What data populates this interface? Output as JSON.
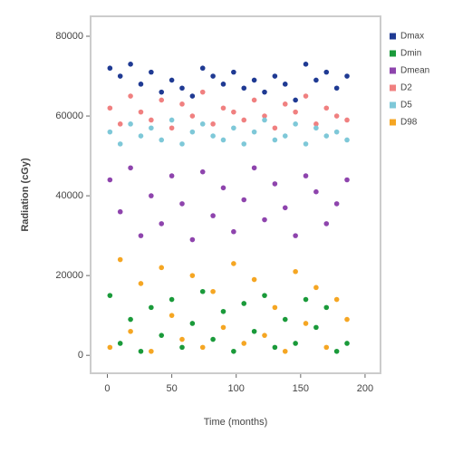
{
  "chart_data": {
    "type": "scatter",
    "xlabel": "Time (months)",
    "ylabel": "Radiation (cGy)",
    "x": [
      2,
      10,
      18,
      26,
      34,
      42,
      50,
      58,
      66,
      74,
      82,
      90,
      98,
      106,
      114,
      122,
      130,
      138,
      146,
      154,
      162,
      170,
      178,
      186
    ],
    "series": [
      {
        "name": "Dmax",
        "color": "#1f3a93",
        "values": [
          72000,
          70000,
          73000,
          68000,
          71000,
          66000,
          69000,
          67000,
          65000,
          72000,
          70000,
          68000,
          71000,
          67000,
          69000,
          66000,
          70000,
          68000,
          64000,
          73000,
          69000,
          71000,
          67000,
          70000
        ]
      },
      {
        "name": "Dmin",
        "color": "#1a9a3a",
        "values": [
          15000,
          3000,
          9000,
          1000,
          12000,
          5000,
          14000,
          2000,
          8000,
          16000,
          4000,
          11000,
          1000,
          13000,
          6000,
          15000,
          2000,
          9000,
          3000,
          14000,
          7000,
          12000,
          1000,
          3000
        ]
      },
      {
        "name": "Dmean",
        "color": "#8e44ad",
        "values": [
          44000,
          36000,
          47000,
          30000,
          40000,
          33000,
          45000,
          38000,
          29000,
          46000,
          35000,
          42000,
          31000,
          39000,
          47000,
          34000,
          43000,
          37000,
          30000,
          45000,
          41000,
          33000,
          38000,
          44000
        ]
      },
      {
        "name": "D2",
        "color": "#f08080",
        "values": [
          62000,
          58000,
          65000,
          61000,
          59000,
          64000,
          57000,
          63000,
          60000,
          66000,
          58000,
          62000,
          61000,
          59000,
          64000,
          60000,
          57000,
          63000,
          61000,
          65000,
          58000,
          62000,
          60000,
          59000
        ]
      },
      {
        "name": "D5",
        "color": "#7ec8d8",
        "values": [
          56000,
          53000,
          58000,
          55000,
          57000,
          54000,
          59000,
          53000,
          56000,
          58000,
          55000,
          54000,
          57000,
          53000,
          56000,
          59000,
          54000,
          55000,
          58000,
          53000,
          57000,
          55000,
          56000,
          54000
        ]
      },
      {
        "name": "D98",
        "color": "#f5a623",
        "values": [
          2000,
          24000,
          6000,
          18000,
          1000,
          22000,
          10000,
          4000,
          20000,
          2000,
          16000,
          7000,
          23000,
          3000,
          19000,
          5000,
          12000,
          1000,
          21000,
          8000,
          17000,
          2000,
          14000,
          9000
        ]
      }
    ],
    "xlim": [
      -13,
      212
    ],
    "xticks": [
      0,
      50,
      100,
      150,
      200
    ],
    "ylim": [
      -4500,
      85000
    ],
    "yticks": [
      0,
      20000,
      40000,
      60000,
      80000
    ]
  }
}
